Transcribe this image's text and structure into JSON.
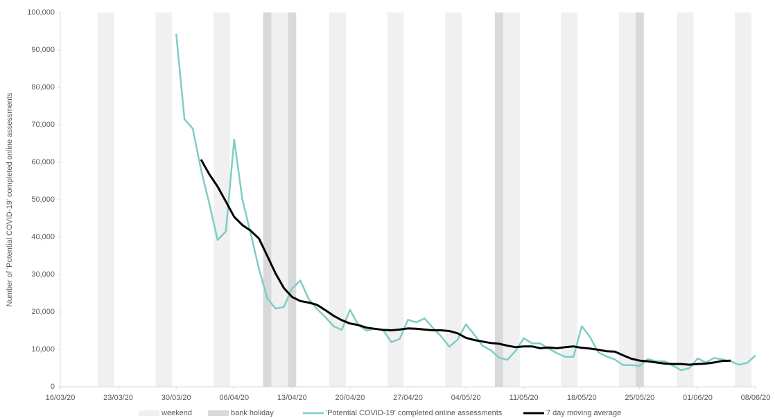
{
  "chart_data": {
    "type": "line",
    "y_label": "Number of 'Potential COVID-19' completed online assessments",
    "xlim": [
      "2020-03-16",
      "2020-06-08"
    ],
    "xticks": [
      {
        "value": "2020-03-16",
        "label": "16/03/20"
      },
      {
        "value": "2020-03-23",
        "label": "23/03/20"
      },
      {
        "value": "2020-03-30",
        "label": "30/03/20"
      },
      {
        "value": "2020-04-06",
        "label": "06/04/20"
      },
      {
        "value": "2020-04-13",
        "label": "13/04/20"
      },
      {
        "value": "2020-04-20",
        "label": "20/04/20"
      },
      {
        "value": "2020-04-27",
        "label": "27/04/20"
      },
      {
        "value": "2020-05-04",
        "label": "04/05/20"
      },
      {
        "value": "2020-05-11",
        "label": "11/05/20"
      },
      {
        "value": "2020-05-18",
        "label": "18/05/20"
      },
      {
        "value": "2020-05-25",
        "label": "25/05/20"
      },
      {
        "value": "2020-06-01",
        "label": "01/06/20"
      },
      {
        "value": "2020-06-08",
        "label": "08/06/20"
      }
    ],
    "ylim": [
      0,
      100000
    ],
    "yticks": [
      0,
      {
        "value": 10000,
        "label": "10,000"
      },
      {
        "value": 20000,
        "label": "20,000"
      },
      {
        "value": 30000,
        "label": "30,000"
      },
      {
        "value": 40000,
        "label": "40,000"
      },
      {
        "value": 50000,
        "label": "50,000"
      },
      {
        "value": 60000,
        "label": "60,000"
      },
      {
        "value": 70000,
        "label": "70,000"
      },
      {
        "value": 80000,
        "label": "80,000"
      },
      {
        "value": 90000,
        "label": "90,000"
      },
      {
        "value": 100000,
        "label": "100,000"
      }
    ],
    "grid": false,
    "bands": [
      {
        "name": "weekend",
        "color": "#f0f0f0",
        "dates": [
          "2020-03-21",
          "2020-03-22",
          "2020-03-28",
          "2020-03-29",
          "2020-04-04",
          "2020-04-05",
          "2020-04-11",
          "2020-04-12",
          "2020-04-18",
          "2020-04-19",
          "2020-04-25",
          "2020-04-26",
          "2020-05-02",
          "2020-05-03",
          "2020-05-09",
          "2020-05-10",
          "2020-05-16",
          "2020-05-17",
          "2020-05-23",
          "2020-05-24",
          "2020-05-30",
          "2020-05-31",
          "2020-06-06",
          "2020-06-07"
        ]
      },
      {
        "name": "bank holiday",
        "color": "#d9d9d9",
        "dates": [
          "2020-04-10",
          "2020-04-13",
          "2020-05-08",
          "2020-05-25"
        ]
      }
    ],
    "x": [
      "2020-03-30",
      "2020-03-31",
      "2020-04-01",
      "2020-04-02",
      "2020-04-03",
      "2020-04-04",
      "2020-04-05",
      "2020-04-06",
      "2020-04-07",
      "2020-04-08",
      "2020-04-09",
      "2020-04-10",
      "2020-04-11",
      "2020-04-12",
      "2020-04-13",
      "2020-04-14",
      "2020-04-15",
      "2020-04-16",
      "2020-04-17",
      "2020-04-18",
      "2020-04-19",
      "2020-04-20",
      "2020-04-21",
      "2020-04-22",
      "2020-04-23",
      "2020-04-24",
      "2020-04-25",
      "2020-04-26",
      "2020-04-27",
      "2020-04-28",
      "2020-04-29",
      "2020-04-30",
      "2020-05-01",
      "2020-05-02",
      "2020-05-03",
      "2020-05-04",
      "2020-05-05",
      "2020-05-06",
      "2020-05-07",
      "2020-05-08",
      "2020-05-09",
      "2020-05-10",
      "2020-05-11",
      "2020-05-12",
      "2020-05-13",
      "2020-05-14",
      "2020-05-15",
      "2020-05-16",
      "2020-05-17",
      "2020-05-18",
      "2020-05-19",
      "2020-05-20",
      "2020-05-21",
      "2020-05-22",
      "2020-05-23",
      "2020-05-24",
      "2020-05-25",
      "2020-05-26",
      "2020-05-27",
      "2020-05-28",
      "2020-05-29",
      "2020-05-30",
      "2020-05-31",
      "2020-06-01",
      "2020-06-02",
      "2020-06-03",
      "2020-06-04",
      "2020-06-05",
      "2020-06-06",
      "2020-06-07",
      "2020-06-08"
    ],
    "series": [
      {
        "name": "'Potential COVID-19' completed online assessments",
        "color": "#7ecdc4",
        "width": 2.5,
        "values": [
          94300,
          71500,
          69000,
          58000,
          49000,
          39200,
          41500,
          66000,
          50000,
          41000,
          31500,
          23700,
          20900,
          21300,
          26300,
          28400,
          23500,
          20800,
          18700,
          16200,
          15200,
          20600,
          16500,
          15000,
          15500,
          15200,
          11900,
          12800,
          17900,
          17200,
          18300,
          15800,
          13500,
          10700,
          12600,
          16700,
          14000,
          11000,
          9800,
          7800,
          7200,
          9600,
          13000,
          11600,
          11600,
          10200,
          9000,
          8000,
          8000,
          16200,
          13300,
          9200,
          8100,
          7300,
          5800,
          5800,
          5600,
          7400,
          6800,
          6800,
          5700,
          4400,
          5000,
          7600,
          6500,
          7700,
          7300,
          6800,
          5900,
          6400,
          8400
        ]
      },
      {
        "name": "7 day moving average",
        "color": "#000000",
        "width": 3,
        "values": [
          null,
          null,
          null,
          60700,
          56800,
          53500,
          49500,
          45400,
          43200,
          41700,
          39600,
          35000,
          30300,
          26400,
          24000,
          22900,
          22500,
          21900,
          20500,
          19000,
          17800,
          16900,
          16500,
          15800,
          15500,
          15200,
          15100,
          15300,
          15600,
          15500,
          15300,
          15100,
          15100,
          14900,
          14300,
          13100,
          12500,
          12100,
          11700,
          11500,
          11000,
          10600,
          10800,
          10800,
          10300,
          10500,
          10300,
          10600,
          10800,
          10400,
          10200,
          9900,
          9500,
          9400,
          8400,
          7500,
          7000,
          6800,
          6500,
          6200,
          6100,
          6100,
          5900,
          6100,
          6200,
          6500,
          6900,
          7000,
          null,
          null,
          null
        ]
      }
    ]
  }
}
